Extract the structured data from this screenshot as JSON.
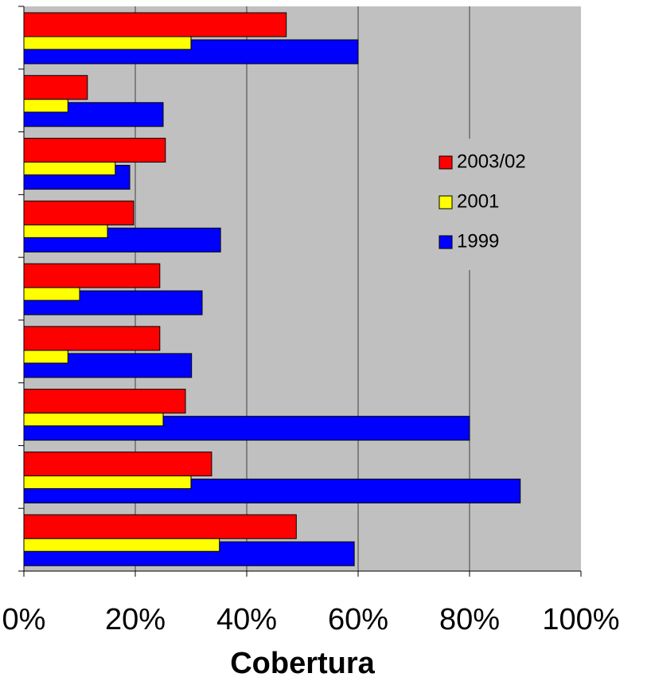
{
  "chart_data": {
    "type": "bar",
    "orientation": "horizontal",
    "xlabel": "Cobertura",
    "categories": [
      null,
      null,
      null,
      null,
      null,
      null,
      null,
      null,
      null
    ],
    "series": [
      {
        "name": "2003/02",
        "color": "#ff0000",
        "values": [
          47.1,
          11.4,
          25.4,
          19.7,
          24.4,
          24.4,
          29,
          33.7,
          48.9
        ]
      },
      {
        "name": "2001",
        "color": "#ffff00",
        "values": [
          30,
          7.9,
          16.4,
          15,
          10,
          7.9,
          25,
          30,
          35.1
        ]
      },
      {
        "name": "1999",
        "color": "#0000ff",
        "values": [
          60,
          25,
          19,
          35.3,
          32,
          30.1,
          80,
          89.1,
          59.3
        ]
      }
    ],
    "xlim": [
      0,
      100
    ],
    "xticks": [
      {
        "value": 0,
        "label": "0%"
      },
      {
        "value": 20,
        "label": "20%"
      },
      {
        "value": 40,
        "label": "40%"
      },
      {
        "value": 60,
        "label": "60%"
      },
      {
        "value": 80,
        "label": "80%"
      },
      {
        "value": 100,
        "label": "100%"
      }
    ],
    "grid": true,
    "legend": "right"
  }
}
